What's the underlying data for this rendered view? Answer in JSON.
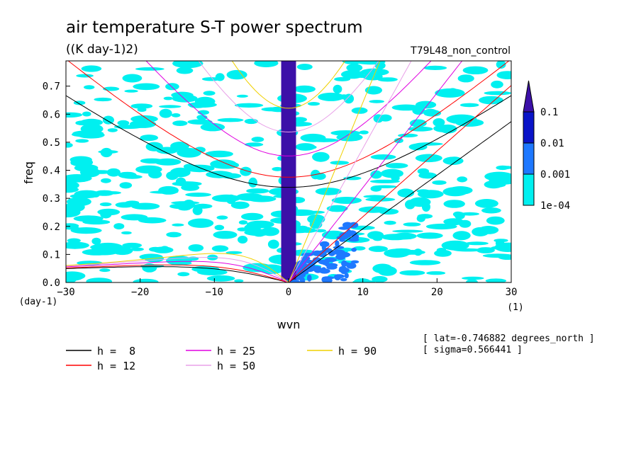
{
  "chart_data": {
    "type": "heatmap",
    "title": "air temperature S-T power spectrum",
    "subtitle": "((K day-1)2)",
    "run_label": "T79L48_non_control",
    "xlabel": "wvn",
    "ylabel": "freq",
    "x_unit": "(1)",
    "y_unit": "(day-1)",
    "xlim": [
      -30,
      30
    ],
    "ylim": [
      0,
      0.79
    ],
    "x_ticks": [
      -30,
      -20,
      -10,
      0,
      10,
      20,
      30
    ],
    "y_ticks": [
      0.0,
      0.1,
      0.2,
      0.3,
      0.4,
      0.5,
      0.6,
      0.7
    ],
    "colorbar": {
      "levels": [
        "1e-04",
        "0.001",
        "0.01",
        "0.1"
      ],
      "colors": [
        "#00f0f0",
        "#1e78ff",
        "#0a14c8",
        "#3c10a8"
      ]
    },
    "dispersion_legend": [
      {
        "label": "h =  8",
        "color": "#000000"
      },
      {
        "label": "h = 12",
        "color": "#ff0000"
      },
      {
        "label": "h = 25",
        "color": "#e000e0"
      },
      {
        "label": "h = 50",
        "color": "#e8a0e8"
      },
      {
        "label": "h = 90",
        "color": "#f0d000"
      }
    ],
    "info": [
      "[ lat=-0.746882 degrees_north ]",
      "[ sigma=0.566441 ]"
    ]
  }
}
